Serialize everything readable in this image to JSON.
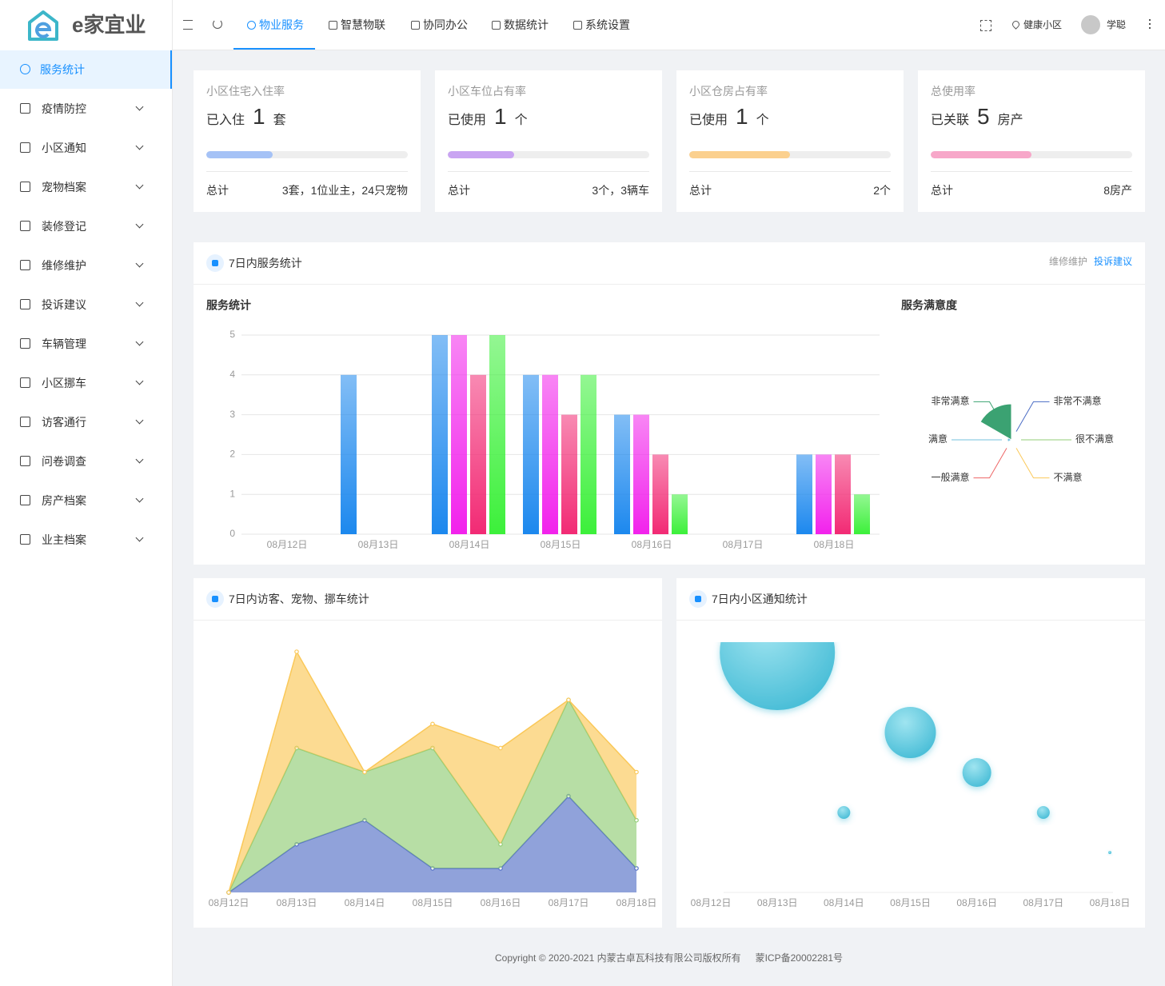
{
  "header": {
    "logo": "e家宜业",
    "nav": [
      "物业服务",
      "智慧物联",
      "协同办公",
      "数据统计",
      "系统设置"
    ],
    "community": "健康小区",
    "user": "学聪"
  },
  "sidebar": [
    "服务统计",
    "疫情防控",
    "小区通知",
    "宠物档案",
    "装修登记",
    "维修维护",
    "投诉建议",
    "车辆管理",
    "小区挪车",
    "访客通行",
    "问卷调查",
    "房产档案",
    "业主档案"
  ],
  "stats": [
    {
      "title": "小区住宅入住率",
      "prefix": "已入住",
      "value": 1,
      "unit": "套",
      "progress": 33,
      "color": "#a5c2f6",
      "total_label": "总计",
      "total": "3套，1位业主，24只宠物"
    },
    {
      "title": "小区车位占有率",
      "prefix": "已使用",
      "value": 1,
      "unit": "个",
      "progress": 33,
      "color": "#c9a4f2",
      "total_label": "总计",
      "total": "3个，3辆车"
    },
    {
      "title": "小区仓房占有率",
      "prefix": "已使用",
      "value": 1,
      "unit": "个",
      "progress": 50,
      "color": "#fbd08e",
      "total_label": "总计",
      "total": "2个"
    },
    {
      "title": "总使用率",
      "prefix": "已关联",
      "value": 5,
      "unit": "房产",
      "progress": 50,
      "color": "#f7a7c9",
      "total_label": "总计",
      "total": "8房产"
    }
  ],
  "panels": [
    {
      "title": "7日内服务统计",
      "links": [
        "维修维护",
        "投诉建议"
      ]
    },
    {
      "title": "7日内访客、宠物、挪车统计"
    },
    {
      "title": "7日内小区通知统计"
    }
  ],
  "chart_data": [
    {
      "type": "bar",
      "title": "服务统计",
      "categories": [
        "08月12日",
        "08月13日",
        "08月14日",
        "08月15日",
        "08月16日",
        "08月17日",
        "08月18日"
      ],
      "series": [
        {
          "color": "#1c88ee",
          "values": [
            0,
            4,
            5,
            4,
            3,
            0,
            2
          ]
        },
        {
          "color": "#f222ec",
          "values": [
            0,
            0,
            5,
            4,
            3,
            0,
            2
          ]
        },
        {
          "color": "#f22a74",
          "values": [
            0,
            0,
            4,
            3,
            2,
            0,
            2
          ]
        },
        {
          "color": "#3cf03a",
          "values": [
            0,
            0,
            5,
            4,
            1,
            0,
            1
          ]
        }
      ],
      "ylim": [
        0,
        5
      ],
      "yticks": [
        0,
        1,
        2,
        3,
        4,
        5
      ],
      "grid": true
    },
    {
      "type": "pie",
      "title": "服务满意度",
      "categories": [
        "非常不满意",
        "很不满意",
        "不满意",
        "一般满意",
        "满意",
        "非常满意"
      ],
      "values": [
        0,
        0,
        0,
        0,
        1,
        9
      ],
      "colors": [
        "#4a6cc4",
        "#93cd77",
        "#fbc95a",
        "#ee6666",
        "#73c0de",
        "#3ba272"
      ],
      "rose": true
    },
    {
      "type": "area",
      "stacked": true,
      "categories": [
        "08月12日",
        "08月13日",
        "08月14日",
        "08月15日",
        "08月16日",
        "08月17日",
        "08月18日"
      ],
      "series": [
        {
          "color": "#5470c6",
          "values": [
            0,
            2,
            3,
            1,
            1,
            4,
            1
          ]
        },
        {
          "color": "#91cc75",
          "values": [
            0,
            4,
            2,
            5,
            1,
            4,
            2
          ]
        },
        {
          "color": "#fac858",
          "values": [
            0,
            4,
            0,
            1,
            4,
            0,
            2
          ]
        }
      ],
      "ylim": [
        0,
        10
      ]
    },
    {
      "type": "scatter",
      "categories": [
        "08月12日",
        "08月13日",
        "08月14日",
        "08月15日",
        "08月16日",
        "08月17日",
        "08月18日"
      ],
      "values": [
        0,
        6,
        2,
        4,
        3,
        2,
        1
      ],
      "color": "#4cbfd8",
      "ylim": [
        0,
        6
      ]
    }
  ],
  "footer": {
    "copyright": "Copyright © 2020-2021 内蒙古卓瓦科技有限公司版权所有",
    "icp": "蒙ICP备20002281号"
  }
}
